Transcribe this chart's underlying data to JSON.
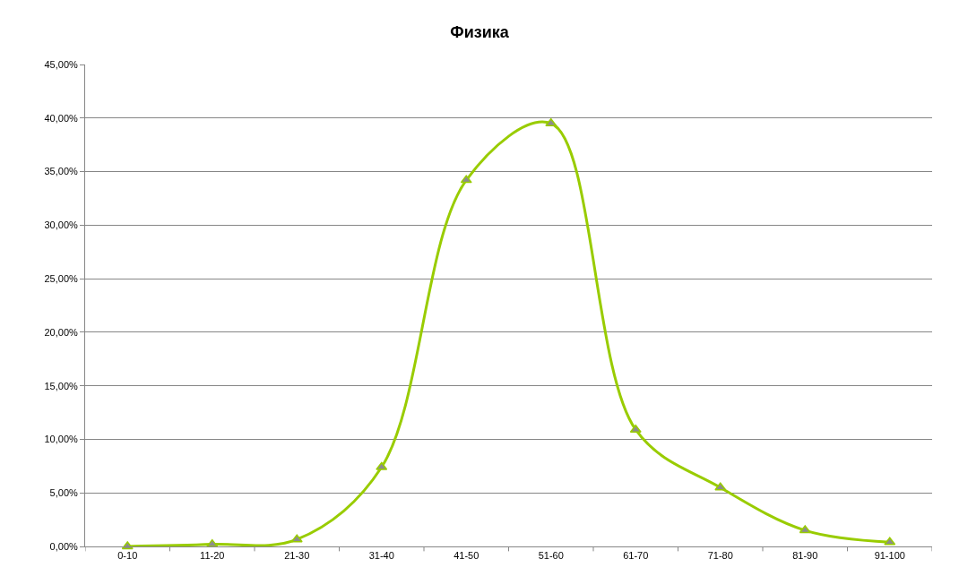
{
  "chart_data": {
    "type": "line",
    "title": "Физика",
    "categories": [
      "0-10",
      "11-20",
      "21-30",
      "31-40",
      "41-50",
      "51-60",
      "61-70",
      "71-80",
      "81-90",
      "91-100"
    ],
    "series": [
      {
        "color": "#99cc00",
        "values": [
          0,
          0.2,
          0.65,
          7.4,
          34.2,
          39.5,
          10.9,
          5.5,
          1.5,
          0.4
        ]
      }
    ],
    "ylim": [
      0,
      45
    ],
    "yticks": [
      {
        "value": 0,
        "label": "0,00%"
      },
      {
        "value": 5,
        "label": "5,00%"
      },
      {
        "value": 10,
        "label": "10,00%"
      },
      {
        "value": 15,
        "label": "15,00%"
      },
      {
        "value": 20,
        "label": "20,00%"
      },
      {
        "value": 25,
        "label": "25,00%"
      },
      {
        "value": 30,
        "label": "30,00%"
      },
      {
        "value": 35,
        "label": "35,00%"
      },
      {
        "value": 40,
        "label": "40,00%"
      },
      {
        "value": 45,
        "label": "45,00%"
      }
    ],
    "grid": "y",
    "legend": false,
    "marker": "triangle",
    "line_style": "solid"
  }
}
